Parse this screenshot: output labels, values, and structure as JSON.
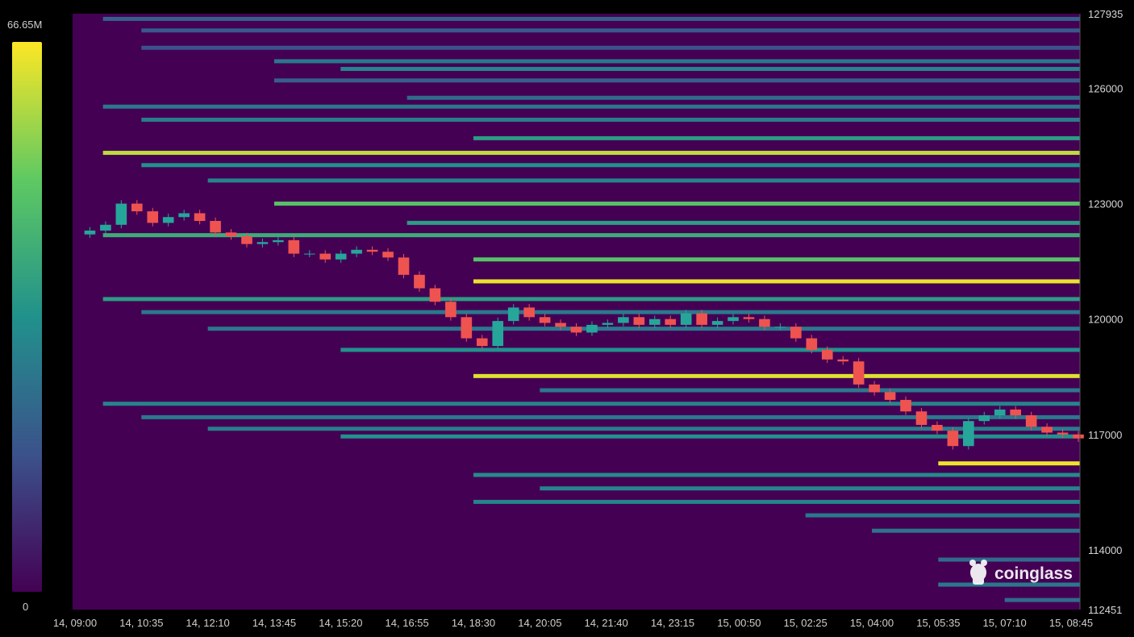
{
  "colorbar": {
    "max_label": "66.65M",
    "min_label": "0",
    "max_value": 66.65,
    "min_value": 0
  },
  "watermark": {
    "text": "coinglass",
    "icon": "coinglass-logo-icon"
  },
  "colors": {
    "background": "#440154",
    "candle_up": "#26a69a",
    "candle_down": "#ef5350",
    "gradient": [
      "#440154",
      "#3b528b",
      "#21918c",
      "#5ec962",
      "#fde725"
    ]
  },
  "chart_data": {
    "type": "heatmap",
    "title": "",
    "xlabel": "",
    "ylabel": "",
    "x_tick_labels": [
      "14, 09:00",
      "14, 10:35",
      "14, 12:10",
      "14, 13:45",
      "14, 15:20",
      "14, 16:55",
      "14, 18:30",
      "14, 20:05",
      "14, 21:40",
      "14, 23:15",
      "15, 00:50",
      "15, 02:25",
      "15, 04:00",
      "15, 05:35",
      "15, 07:10",
      "15, 08:45"
    ],
    "y_tick_labels": [
      "127935",
      "126000",
      "123000",
      "120000",
      "117000",
      "114000",
      "112451"
    ],
    "y_tick_values": [
      127935,
      126000,
      123000,
      120000,
      117000,
      114000,
      112451
    ],
    "ylim": [
      112451,
      127935
    ],
    "price_series": [
      122200,
      122300,
      122450,
      123000,
      122800,
      122500,
      122650,
      122750,
      122550,
      122250,
      122150,
      121950,
      122000,
      122050,
      121700,
      121700,
      121550,
      121700,
      121800,
      121750,
      121600,
      121150,
      120800,
      120450,
      120050,
      119500,
      119300,
      119950,
      120300,
      120050,
      119900,
      119800,
      119650,
      119850,
      119900,
      120050,
      119850,
      120000,
      119850,
      120150,
      119850,
      119950,
      120050,
      120000,
      119800,
      119800,
      119500,
      119200,
      118950,
      118900,
      118300,
      118100,
      117900,
      117600,
      117250,
      117100,
      116700,
      117350,
      117500,
      117650,
      117500,
      117200,
      117050,
      117000,
      116900
    ],
    "liquidity_levels": [
      {
        "price": 127800,
        "start": "14, 09:40",
        "intensity": 0.3
      },
      {
        "price": 127500,
        "start": "14, 10:35",
        "intensity": 0.28
      },
      {
        "price": 127050,
        "start": "14, 10:35",
        "intensity": 0.25
      },
      {
        "price": 126700,
        "start": "14, 13:45",
        "intensity": 0.4
      },
      {
        "price": 126500,
        "start": "14, 15:20",
        "intensity": 0.45
      },
      {
        "price": 126200,
        "start": "14, 13:45",
        "intensity": 0.3
      },
      {
        "price": 125750,
        "start": "14, 16:55",
        "intensity": 0.35
      },
      {
        "price": 125520,
        "start": "14, 09:40",
        "intensity": 0.4
      },
      {
        "price": 125180,
        "start": "14, 10:35",
        "intensity": 0.42
      },
      {
        "price": 124700,
        "start": "14, 18:30",
        "intensity": 0.55
      },
      {
        "price": 124320,
        "start": "14, 09:40",
        "intensity": 0.9
      },
      {
        "price": 124000,
        "start": "14, 10:35",
        "intensity": 0.5
      },
      {
        "price": 123600,
        "start": "14, 12:10",
        "intensity": 0.45
      },
      {
        "price": 123000,
        "start": "14, 13:45",
        "intensity": 0.72
      },
      {
        "price": 122500,
        "start": "14, 16:55",
        "intensity": 0.55
      },
      {
        "price": 122180,
        "start": "14, 09:40",
        "intensity": 0.62
      },
      {
        "price": 121550,
        "start": "14, 18:30",
        "intensity": 0.72
      },
      {
        "price": 120980,
        "start": "14, 18:30",
        "intensity": 0.97
      },
      {
        "price": 120520,
        "start": "14, 09:40",
        "intensity": 0.55
      },
      {
        "price": 120180,
        "start": "14, 10:35",
        "intensity": 0.4
      },
      {
        "price": 119750,
        "start": "14, 12:10",
        "intensity": 0.4
      },
      {
        "price": 119200,
        "start": "14, 15:20",
        "intensity": 0.5
      },
      {
        "price": 118520,
        "start": "14, 18:30",
        "intensity": 0.95
      },
      {
        "price": 118150,
        "start": "14, 20:05",
        "intensity": 0.4
      },
      {
        "price": 117800,
        "start": "14, 09:40",
        "intensity": 0.45
      },
      {
        "price": 117450,
        "start": "14, 10:35",
        "intensity": 0.4
      },
      {
        "price": 117150,
        "start": "14, 12:10",
        "intensity": 0.42
      },
      {
        "price": 116950,
        "start": "14, 15:20",
        "intensity": 0.5
      },
      {
        "price": 116250,
        "start": "15, 05:35",
        "intensity": 0.98
      },
      {
        "price": 115950,
        "start": "14, 18:30",
        "intensity": 0.48
      },
      {
        "price": 115600,
        "start": "14, 20:05",
        "intensity": 0.45
      },
      {
        "price": 115250,
        "start": "14, 18:30",
        "intensity": 0.45
      },
      {
        "price": 114900,
        "start": "15, 02:25",
        "intensity": 0.4
      },
      {
        "price": 114500,
        "start": "15, 04:00",
        "intensity": 0.38
      },
      {
        "price": 113750,
        "start": "15, 05:35",
        "intensity": 0.35
      },
      {
        "price": 113100,
        "start": "15, 05:35",
        "intensity": 0.4
      },
      {
        "price": 112700,
        "start": "15, 07:10",
        "intensity": 0.35
      }
    ]
  }
}
